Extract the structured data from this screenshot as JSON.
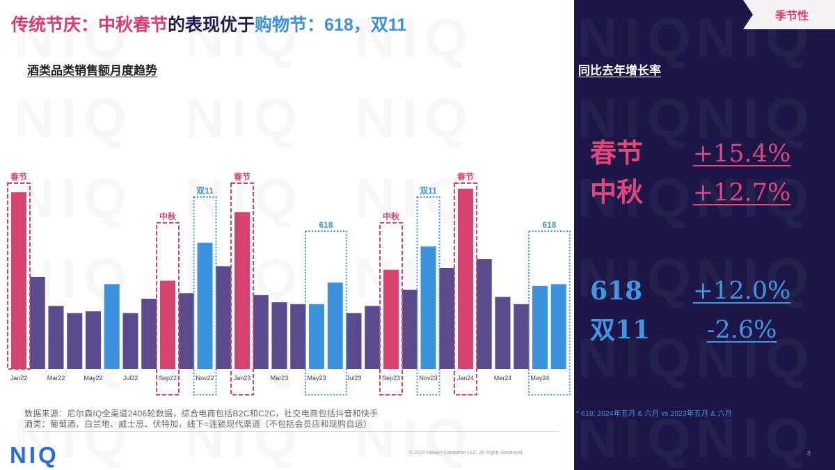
{
  "tag": "季节性",
  "title": {
    "part1": "传统节庆：中秋春节",
    "part2": "的表现优于",
    "part3": "购物节：618，双11"
  },
  "chart_data": {
    "type": "bar",
    "title": "酒类品类销售额月度趋势",
    "x_tick_labels": [
      "Jan22",
      "Mar22",
      "May22",
      "Jul22",
      "Sep22",
      "Nov22",
      "Jan23",
      "Mar23",
      "May23",
      "Jul23",
      "Sep23",
      "Nov23",
      "Jan24",
      "Mar24",
      "May24"
    ],
    "values": [
      98,
      51,
      35,
      31,
      32,
      47,
      31,
      39,
      49,
      42,
      70,
      57,
      87,
      41,
      37,
      36,
      36,
      48,
      31,
      35,
      55,
      44,
      68,
      56,
      100,
      61,
      40,
      36,
      46,
      47
    ],
    "bar_colors": [
      "#d6436f",
      "#5c4b8c",
      "#5c4b8c",
      "#5c4b8c",
      "#5c4b8c",
      "#3c92dc",
      "#5c4b8c",
      "#5c4b8c",
      "#d6436f",
      "#5c4b8c",
      "#3c92dc",
      "#5c4b8c",
      "#d6436f",
      "#5c4b8c",
      "#5c4b8c",
      "#5c4b8c",
      "#3c92dc",
      "#3c92dc",
      "#5c4b8c",
      "#5c4b8c",
      "#d6436f",
      "#5c4b8c",
      "#3c92dc",
      "#5c4b8c",
      "#d6436f",
      "#5c4b8c",
      "#5c4b8c",
      "#5c4b8c",
      "#3c92dc",
      "#3c92dc"
    ],
    "ylim": [
      0,
      100
    ],
    "grid": false,
    "annotations": [
      {
        "label": "春节",
        "bars": [
          0
        ],
        "color": "#d6436f",
        "dotted": false
      },
      {
        "label": "中秋",
        "bars": [
          8
        ],
        "color": "#d6436f",
        "dotted": false
      },
      {
        "label": "双11",
        "bars": [
          10
        ],
        "color": "#3c92dc",
        "dotted": true
      },
      {
        "label": "春节",
        "bars": [
          12
        ],
        "color": "#d6436f",
        "dotted": false
      },
      {
        "label": "618",
        "bars": [
          16,
          17
        ],
        "color": "#3c92dc",
        "dotted": true
      },
      {
        "label": "中秋",
        "bars": [
          20
        ],
        "color": "#d6436f",
        "dotted": false
      },
      {
        "label": "双11",
        "bars": [
          22
        ],
        "color": "#3c92dc",
        "dotted": true
      },
      {
        "label": "春节",
        "bars": [
          24
        ],
        "color": "#d6436f",
        "dotted": false
      },
      {
        "label": "618",
        "bars": [
          28,
          29
        ],
        "color": "#3c92dc",
        "dotted": true
      }
    ]
  },
  "yoy_panel": {
    "title": "同比去年增长率",
    "rows": [
      {
        "label": "春节",
        "value": "+15.4%",
        "color": "#e0457b"
      },
      {
        "label": "中秋",
        "value": "+12.7%",
        "color": "#e0457b"
      },
      {
        "label": "618",
        "value": "+12.0%",
        "color": "#4295e2"
      },
      {
        "label": "双11",
        "value": "-2.6%",
        "color": "#4295e2"
      }
    ],
    "footnote": "* 618: 2024年五月 & 六月 vs 2023年五月 & 六月"
  },
  "footer": {
    "source_line1": "数据来源：尼尔森IQ全渠道2406轮数据，综合电商包括B2C和C2C，社交电商包括抖音和快手",
    "source_line2": "酒类：葡萄酒、白兰地、威士忌、伏特加，线下=连锁现代渠道（不包括会员店和现购自运）",
    "logo": "NIQ",
    "copyright": "© 2024 Nielsen Consumer LLC. All Rights Reserved.",
    "page_number": "8"
  },
  "watermark": "NIQ"
}
